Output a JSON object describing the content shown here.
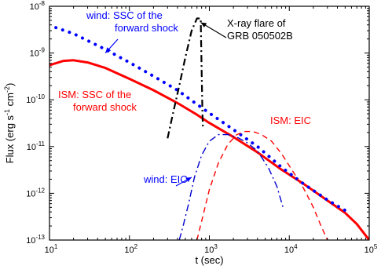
{
  "chart_data": {
    "type": "line",
    "x_scale": "log",
    "y_scale": "log",
    "xlim": [
      10,
      100000
    ],
    "ylim": [
      1e-13,
      1e-08
    ],
    "xlabel": "t (sec)",
    "ylabel": "Flux (erg s^-1 cm^-2)",
    "ylabel_parts": {
      "base": "Flux (erg s",
      "exp1": "-1",
      "mid": " cm",
      "exp2": "-2",
      "end": ")"
    },
    "grid": false,
    "x_ticks": [
      {
        "value": 10,
        "base": "10",
        "exp": "1"
      },
      {
        "value": 100,
        "base": "10",
        "exp": "2"
      },
      {
        "value": 1000,
        "base": "10",
        "exp": "3"
      },
      {
        "value": 10000,
        "base": "10",
        "exp": "4"
      },
      {
        "value": 100000,
        "base": "10",
        "exp": "5"
      }
    ],
    "y_ticks": [
      {
        "value": 1e-13,
        "base": "10",
        "exp": "-13"
      },
      {
        "value": 1e-12,
        "base": "10",
        "exp": "-12"
      },
      {
        "value": 1e-11,
        "base": "10",
        "exp": "-11"
      },
      {
        "value": 1e-10,
        "base": "10",
        "exp": "-10"
      },
      {
        "value": 1e-09,
        "base": "10",
        "exp": "-9"
      },
      {
        "value": 1e-08,
        "base": "10",
        "exp": "-8"
      }
    ],
    "series": [
      {
        "key": "ism-ssc",
        "color": "#ff0000",
        "style": "solid",
        "width": 3,
        "points": [
          [
            10,
            5.5e-10
          ],
          [
            15,
            6.8e-10
          ],
          [
            20,
            7e-10
          ],
          [
            30,
            6.3e-10
          ],
          [
            50,
            4.8e-10
          ],
          [
            100,
            2.8e-10
          ],
          [
            200,
            1.6e-10
          ],
          [
            400,
            8.5e-11
          ],
          [
            700,
            4.8e-11
          ],
          [
            1000,
            3.2e-11
          ],
          [
            2000,
            1.6e-11
          ],
          [
            4000,
            7.5e-12
          ],
          [
            8000,
            3.2e-12
          ],
          [
            15000,
            1.6e-12
          ],
          [
            30000,
            7e-13
          ],
          [
            50000,
            3.8e-13
          ],
          [
            70000,
            2.2e-13
          ],
          [
            100000,
            1e-13
          ]
        ]
      },
      {
        "key": "wind-ssc",
        "color": "#0000ff",
        "style": "dotted",
        "width": 4,
        "points": [
          [
            12,
            3.5e-09
          ],
          [
            20,
            2.6e-09
          ],
          [
            50,
            1.2e-09
          ],
          [
            100,
            6.3e-10
          ],
          [
            200,
            3.2e-10
          ],
          [
            400,
            1.6e-10
          ],
          [
            700,
            8e-11
          ],
          [
            1000,
            5.2e-11
          ],
          [
            2000,
            2.3e-11
          ],
          [
            4000,
            1e-11
          ],
          [
            8000,
            3.6e-12
          ],
          [
            15000,
            1.6e-12
          ],
          [
            30000,
            7.2e-13
          ],
          [
            50000,
            4.3e-13
          ]
        ]
      },
      {
        "key": "ism-eic",
        "color": "#ff0000",
        "style": "dashed",
        "width": 1.4,
        "points": [
          [
            700,
            1e-13
          ],
          [
            800,
            2.5e-13
          ],
          [
            1000,
            1.2e-12
          ],
          [
            1300,
            4.5e-12
          ],
          [
            1700,
            1.1e-11
          ],
          [
            2200,
            1.8e-11
          ],
          [
            2800,
            2.1e-11
          ],
          [
            3500,
            2.1e-11
          ],
          [
            4500,
            1.8e-11
          ],
          [
            6000,
            1.3e-11
          ],
          [
            8000,
            7e-12
          ],
          [
            11000,
            3e-12
          ],
          [
            15000,
            1.3e-12
          ],
          [
            20000,
            5e-13
          ],
          [
            25000,
            2e-13
          ],
          [
            30000,
            1e-13
          ]
        ]
      },
      {
        "key": "wind-eic",
        "color": "#0000cc",
        "style": "dashdot",
        "width": 1.4,
        "points": [
          [
            420,
            1e-13
          ],
          [
            470,
            2e-13
          ],
          [
            550,
            6e-13
          ],
          [
            650,
            2.2e-12
          ],
          [
            800,
            6.5e-12
          ],
          [
            1000,
            1.3e-11
          ],
          [
            1300,
            1.8e-11
          ],
          [
            1700,
            1.8e-11
          ],
          [
            2200,
            1.6e-11
          ],
          [
            3000,
            1.2e-11
          ],
          [
            4000,
            8e-12
          ],
          [
            5500,
            3.5e-12
          ],
          [
            7000,
            1.4e-12
          ],
          [
            8500,
            4.5e-13
          ]
        ]
      },
      {
        "key": "xray-flare",
        "color": "#000000",
        "style": "dashdot",
        "width": 2.2,
        "points": [
          [
            300,
            1.5e-11
          ],
          [
            350,
            5e-11
          ],
          [
            420,
            2e-10
          ],
          [
            500,
            8e-10
          ],
          [
            600,
            3e-09
          ],
          [
            700,
            5.5e-09
          ],
          [
            780,
            5.5e-09
          ],
          [
            800,
            5e-10
          ],
          [
            820,
            5e-11
          ],
          [
            830,
            2.5e-11
          ]
        ]
      }
    ],
    "annotations": [
      {
        "key": "wind-ssc",
        "lines": [
          "wind: SSC of the",
          "forward shock"
        ],
        "color": "#0000ff",
        "arrow_to": [
          50,
          1e-09
        ]
      },
      {
        "key": "xray",
        "lines": [
          "X-ray flare of",
          "GRB 050502B"
        ],
        "color": "#000000",
        "arrow_to": [
          780,
          4.5e-09
        ]
      },
      {
        "key": "ism-ssc",
        "lines": [
          "ISM: SSC of the",
          "forward shock"
        ],
        "color": "#ff0000",
        "arrow_to": null
      },
      {
        "key": "ism-eic",
        "lines": [
          "ISM: EIC"
        ],
        "color": "#ff0000",
        "arrow_to": null
      },
      {
        "key": "wind-eic",
        "lines": [
          "wind: EIC"
        ],
        "color": "#0000ff",
        "arrow_to": [
          600,
          2.2e-12
        ]
      }
    ]
  }
}
